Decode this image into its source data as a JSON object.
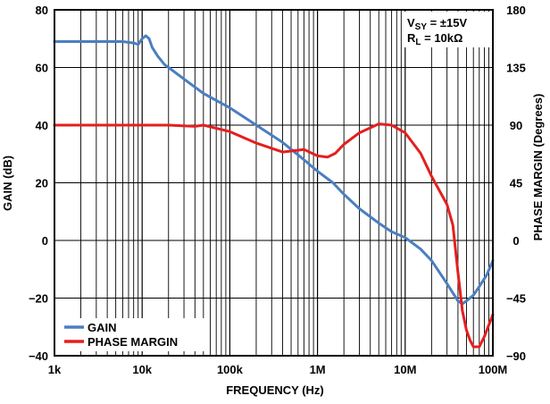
{
  "chart_data": {
    "type": "line",
    "xlabel": "FREQUENCY (Hz)",
    "ylabel": "GAIN (dB)",
    "y2label": "PHASE MARGIN (Degrees)",
    "x_scale": "log",
    "xlim": [
      1000,
      100000000
    ],
    "ylim": [
      -40,
      80
    ],
    "y2lim": [
      -90,
      180
    ],
    "x_ticks": [
      1000,
      10000,
      100000,
      1000000,
      10000000,
      100000000
    ],
    "x_tick_labels": [
      "1k",
      "10k",
      "100k",
      "1M",
      "10M",
      "100M"
    ],
    "y_ticks": [
      -40,
      -20,
      0,
      20,
      40,
      60,
      80
    ],
    "y_tick_labels": [
      "−40",
      "−20",
      "0",
      "20",
      "40",
      "60",
      "80"
    ],
    "y2_ticks": [
      -90,
      -45,
      0,
      45,
      90,
      135,
      180
    ],
    "y2_tick_labels": [
      "−90",
      "−45",
      "0",
      "45",
      "90",
      "135",
      "180"
    ],
    "grid": true,
    "legend": {
      "placement": "bottom-left"
    },
    "conditions": {
      "line1": {
        "prefix": "V",
        "sub": "SY",
        "suffix": " = ±15V"
      },
      "line2": {
        "prefix": "R",
        "sub": "L",
        "suffix": " = 10kΩ"
      }
    },
    "series": [
      {
        "name": "GAIN",
        "axis": "left",
        "color": "#4a7fc0",
        "x": [
          1000,
          3000,
          6000,
          8000,
          9000,
          10000,
          11000,
          12000,
          13000,
          15000,
          18000,
          20000,
          30000,
          50000,
          100000,
          200000,
          400000,
          700000,
          1000000,
          1500000,
          2000000,
          3000000,
          5000000,
          7000000,
          10000000,
          15000000,
          20000000,
          30000000,
          40000000,
          45000000,
          50000000,
          60000000,
          70000000,
          85000000,
          100000000
        ],
        "y": [
          69,
          69,
          69,
          68.5,
          68,
          70,
          71,
          70,
          67,
          64,
          61,
          60,
          56,
          51,
          46,
          40,
          34,
          28,
          24,
          20,
          16,
          11,
          6,
          3,
          1,
          -3,
          -7,
          -15,
          -21,
          -22,
          -21,
          -19,
          -16,
          -12,
          -7
        ]
      },
      {
        "name": "PHASE MARGIN",
        "axis": "right",
        "color": "#e41f1f",
        "x": [
          1000,
          5000,
          10000,
          20000,
          40000,
          50000,
          100000,
          200000,
          400000,
          700000,
          1000000,
          1300000,
          1600000,
          2000000,
          3000000,
          5000000,
          7000000,
          10000000,
          15000000,
          20000000,
          30000000,
          35000000,
          40000000,
          45000000,
          50000000,
          55000000,
          60000000,
          70000000,
          80000000,
          90000000,
          100000000
        ],
        "y": [
          90,
          90,
          90,
          90,
          89,
          90,
          85,
          76,
          69,
          71,
          66,
          65,
          68,
          75,
          84,
          91,
          90,
          84,
          68,
          50,
          28,
          12,
          -25,
          -55,
          -70,
          -78,
          -83,
          -83,
          -75,
          -66,
          -58
        ]
      }
    ]
  }
}
